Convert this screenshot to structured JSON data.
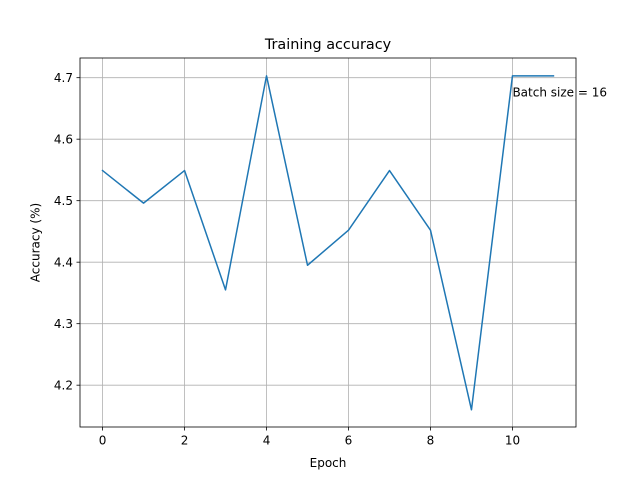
{
  "chart_data": {
    "type": "line",
    "title": "Training accuracy",
    "xlabel": "Epoch",
    "ylabel": "Accuracy (%)",
    "xlim": [
      -0.55,
      11.55
    ],
    "ylim": [
      4.132,
      4.732
    ],
    "xticks": [
      0,
      2,
      4,
      6,
      8,
      10
    ],
    "xtick_labels": [
      "0",
      "2",
      "4",
      "6",
      "8",
      "10"
    ],
    "yticks": [
      4.2,
      4.3,
      4.4,
      4.5,
      4.6,
      4.7
    ],
    "ytick_labels": [
      "4.2",
      "4.3",
      "4.4",
      "4.5",
      "4.6",
      "4.7"
    ],
    "grid": true,
    "color": "#1f77b4",
    "series": [
      {
        "x": [
          0,
          1,
          2,
          3,
          4,
          5,
          6,
          7,
          8,
          9,
          10,
          11
        ],
        "values": [
          4.549,
          4.496,
          4.549,
          4.355,
          4.703,
          4.395,
          4.452,
          4.549,
          4.452,
          4.16,
          4.703,
          4.703
        ]
      }
    ],
    "annotations": [
      {
        "text": "Batch size = 16",
        "x": 10,
        "y": 4.703
      }
    ]
  }
}
